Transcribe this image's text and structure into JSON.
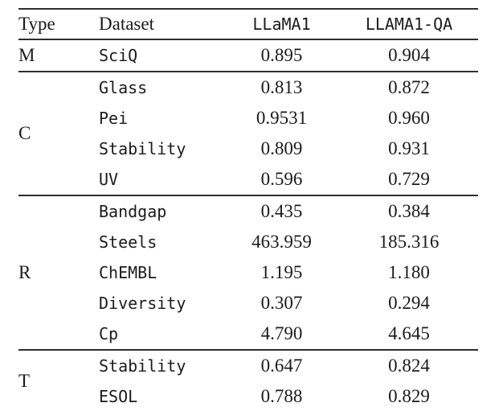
{
  "table": {
    "columns": [
      {
        "key": "type",
        "label": "Type"
      },
      {
        "key": "dataset",
        "label": "Dataset"
      },
      {
        "key": "llama1",
        "label": "LLaMA1"
      },
      {
        "key": "llama1_qa",
        "label": "LLAMA1-QA"
      }
    ],
    "groups": [
      {
        "type": "M",
        "rows": [
          {
            "dataset": "SciQ",
            "llama1": "0.895",
            "llama1_qa": "0.904"
          }
        ]
      },
      {
        "type": "C",
        "rows": [
          {
            "dataset": "Glass",
            "llama1": "0.813",
            "llama1_qa": "0.872"
          },
          {
            "dataset": "Pei",
            "llama1": "0.9531",
            "llama1_qa": "0.960"
          },
          {
            "dataset": "Stability",
            "llama1": "0.809",
            "llama1_qa": "0.931"
          },
          {
            "dataset": "UV",
            "llama1": "0.596",
            "llama1_qa": "0.729"
          }
        ]
      },
      {
        "type": "R",
        "rows": [
          {
            "dataset": "Bandgap",
            "llama1": "0.435",
            "llama1_qa": "0.384"
          },
          {
            "dataset": "Steels",
            "llama1": "463.959",
            "llama1_qa": "185.316"
          },
          {
            "dataset": "ChEMBL",
            "llama1": "1.195",
            "llama1_qa": "1.180"
          },
          {
            "dataset": "Diversity",
            "llama1": "0.307",
            "llama1_qa": "0.294"
          },
          {
            "dataset": "Cp",
            "llama1": "4.790",
            "llama1_qa": "4.645"
          }
        ]
      },
      {
        "type": "T",
        "rows": [
          {
            "dataset": "Stability",
            "llama1": "0.647",
            "llama1_qa": "0.824"
          },
          {
            "dataset": "ESOL",
            "llama1": "0.788",
            "llama1_qa": "0.829"
          }
        ]
      }
    ]
  },
  "colors": {
    "background": "#ffffff",
    "text": "#1b1b1b",
    "rule": "#2e2e2e"
  }
}
